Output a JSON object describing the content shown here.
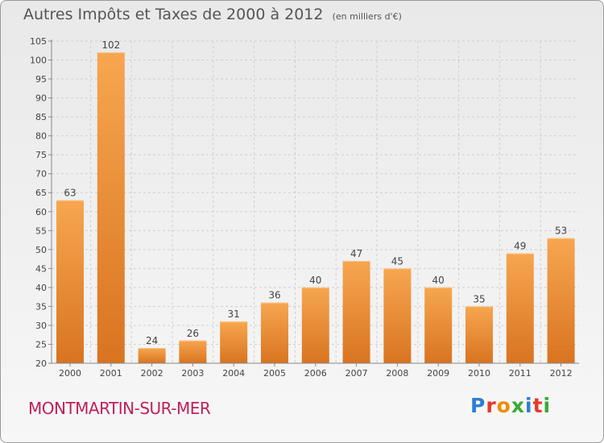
{
  "title": "Autres Impôts et Taxes de 2000 à 2012",
  "subtitle": "(en milliers d'€)",
  "commune": "MONTMARTIN-SUR-MER",
  "logo": {
    "letters": [
      "P",
      "r",
      "o",
      "x",
      "i",
      "t",
      "i"
    ],
    "colors": [
      "#2a7fd4",
      "#e8382a",
      "#f08c00",
      "#3aa935",
      "#2a7fd4",
      "#e8382a",
      "#3aa935"
    ]
  },
  "chart_data": {
    "type": "bar",
    "categories": [
      "2000",
      "2001",
      "2002",
      "2003",
      "2004",
      "2005",
      "2006",
      "2007",
      "2008",
      "2009",
      "2010",
      "2011",
      "2012"
    ],
    "values": [
      63,
      102,
      24,
      26,
      31,
      36,
      40,
      47,
      45,
      40,
      35,
      49,
      53
    ],
    "ylim": [
      20,
      105
    ],
    "yticks": [
      20,
      25,
      30,
      35,
      40,
      45,
      50,
      55,
      60,
      65,
      70,
      75,
      80,
      85,
      90,
      95,
      100,
      105
    ],
    "grid": true,
    "bar_color_top": "#f7a650",
    "bar_color_bottom": "#d97420"
  }
}
